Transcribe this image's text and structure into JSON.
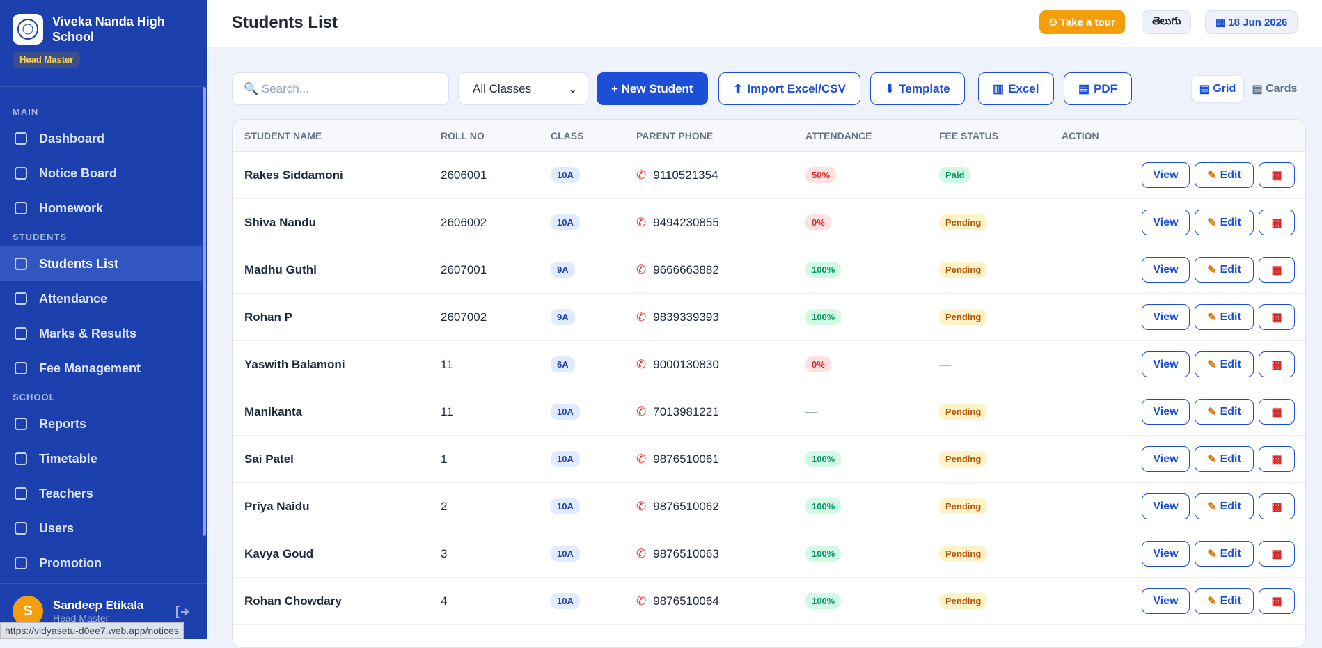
{
  "sidebar": {
    "school_name": "Viveka Nanda High School",
    "role": "Head Master",
    "sections": [
      {
        "title": "MAIN",
        "items": [
          "Dashboard",
          "Notice Board",
          "Homework"
        ]
      },
      {
        "title": "STUDENTS",
        "items": [
          "Students List",
          "Attendance",
          "Marks & Results",
          "Fee Management"
        ]
      },
      {
        "title": "SCHOOL",
        "items": [
          "Reports",
          "Timetable",
          "Teachers",
          "Users",
          "Promotion"
        ]
      }
    ],
    "user": {
      "initial": "S",
      "name": "Sandeep Etikala",
      "role": "Head Master"
    }
  },
  "header": {
    "title": "Students List",
    "tour": "Take a tour",
    "language": "తెలుగు",
    "date": "18 Jun 2026"
  },
  "toolbar": {
    "search_placeholder": "Search...",
    "class_filter": "All Classes",
    "new_student": "+ New Student",
    "buttons": [
      "Import Excel/CSV",
      "Template",
      "Excel",
      "PDF"
    ],
    "views": [
      "Grid",
      "Cards"
    ]
  },
  "table": {
    "columns": [
      "STUDENT NAME",
      "ROLL NO",
      "CLASS",
      "PARENT PHONE",
      "ATTENDANCE",
      "FEE STATUS",
      "ACTION"
    ],
    "actions": {
      "view": "View",
      "edit": "Edit"
    },
    "rows": [
      [
        "Rakes Siddamoni",
        "2606001",
        "10A",
        "9110521354",
        "50%",
        "Paid"
      ],
      [
        "Shiva Nandu",
        "2606002",
        "10A",
        "9494230855",
        "0%",
        "Pending"
      ],
      [
        "Madhu Guthi",
        "2607001",
        "9A",
        "9666663882",
        "100%",
        "Pending"
      ],
      [
        "Rohan P",
        "2607002",
        "9A",
        "9839339393",
        "100%",
        "Pending"
      ],
      [
        "Yaswith Balamoni",
        "11",
        "6A",
        "9000130830",
        "0%",
        "—"
      ],
      [
        "Manikanta",
        "11",
        "10A",
        "7013981221",
        "—",
        "Pending"
      ],
      [
        "Sai Patel",
        "1",
        "10A",
        "9876510061",
        "100%",
        "Pending"
      ],
      [
        "Priya Naidu",
        "2",
        "10A",
        "9876510062",
        "100%",
        "Pending"
      ],
      [
        "Kavya Goud",
        "3",
        "10A",
        "9876510063",
        "100%",
        "Pending"
      ],
      [
        "Rohan Chowdary",
        "4",
        "10A",
        "9876510064",
        "100%",
        "Pending"
      ]
    ]
  },
  "status_url": "https://vidyasetu-d0ee7.web.app/notices"
}
